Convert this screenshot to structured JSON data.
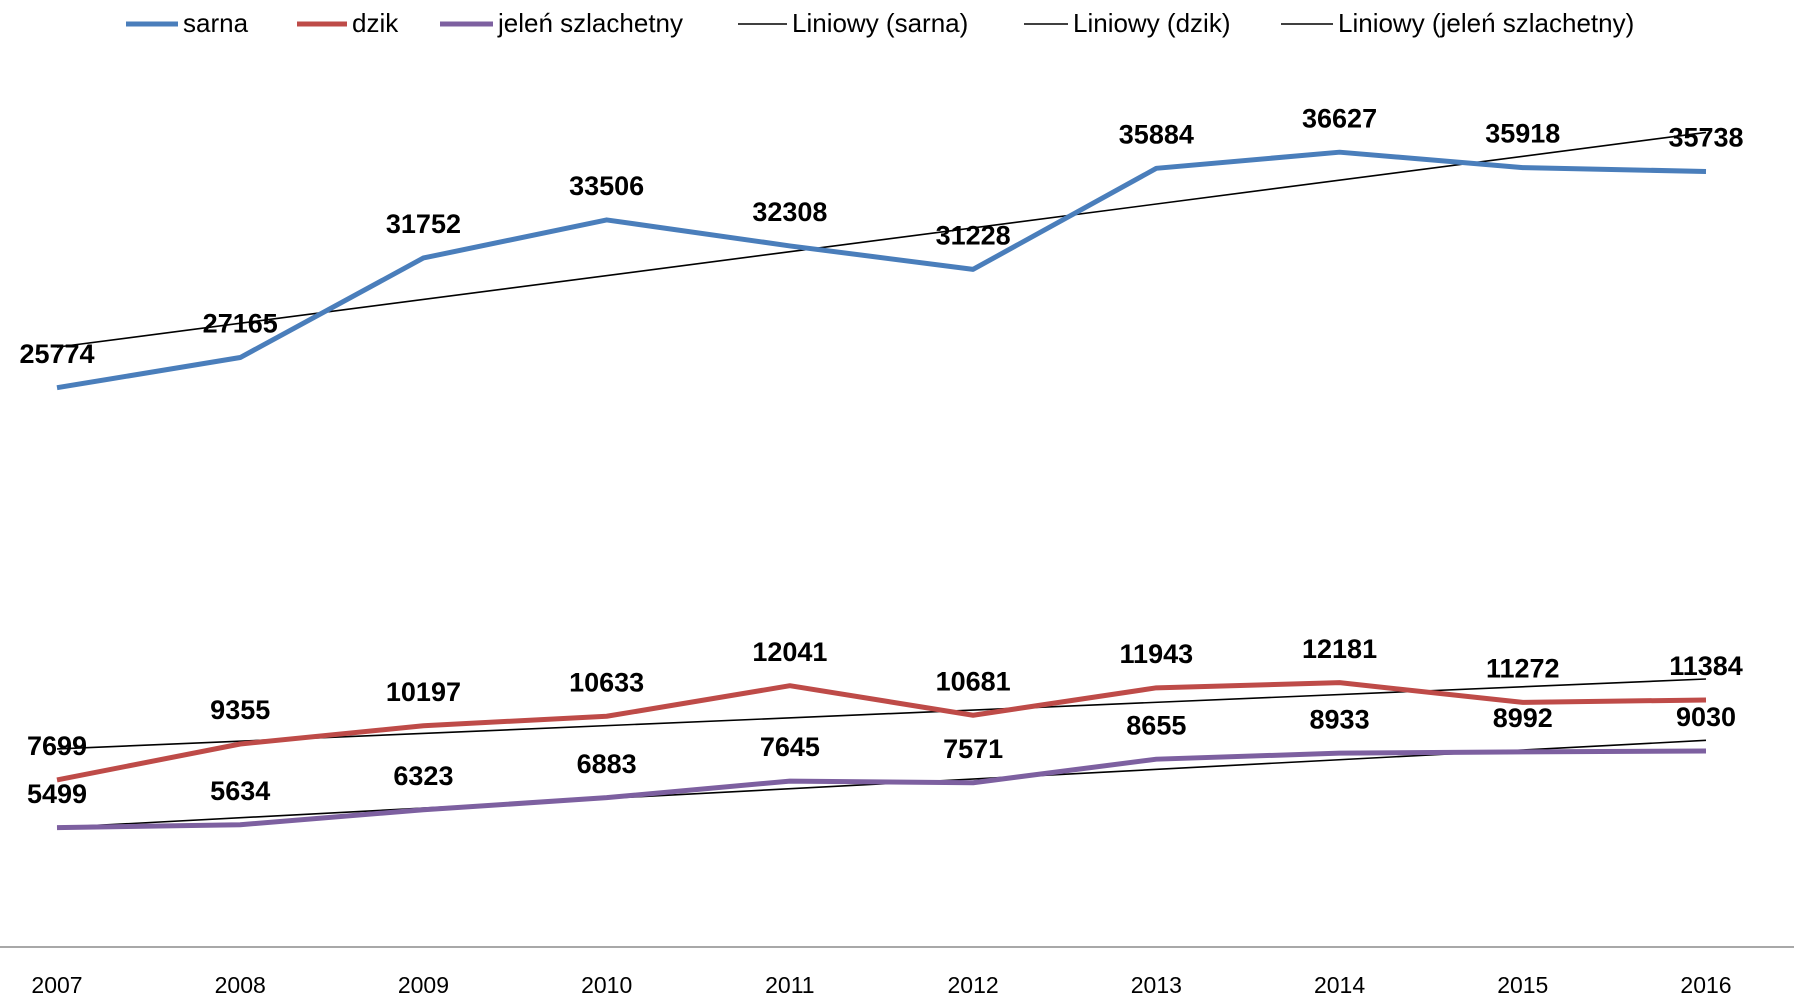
{
  "chart_data": {
    "type": "line",
    "categories": [
      "2007",
      "2008",
      "2009",
      "2010",
      "2011",
      "2012",
      "2013",
      "2014",
      "2015",
      "2016"
    ],
    "series": [
      {
        "name": "sarna",
        "color": "#4a7ebb",
        "values": [
          25774,
          27165,
          31752,
          33506,
          32308,
          31228,
          35884,
          36627,
          35918,
          35738
        ],
        "trendline": {
          "name": "Liniowy (sarna)",
          "color": "#000000"
        }
      },
      {
        "name": "dzik",
        "color": "#be4b48",
        "values": [
          7699,
          9355,
          10197,
          10633,
          12041,
          10681,
          11943,
          12181,
          11272,
          11384
        ],
        "trendline": {
          "name": "Liniowy (dzik)",
          "color": "#000000"
        }
      },
      {
        "name": "jeleń szlachetny",
        "color": "#7d60a0",
        "values": [
          5499,
          5634,
          6323,
          6883,
          7645,
          7571,
          8655,
          8933,
          8992,
          9030
        ],
        "trendline": {
          "name": "Liniowy (jeleń szlachetny)",
          "color": "#000000"
        }
      }
    ],
    "ylim": [
      0,
      40000
    ],
    "legend": "top"
  }
}
